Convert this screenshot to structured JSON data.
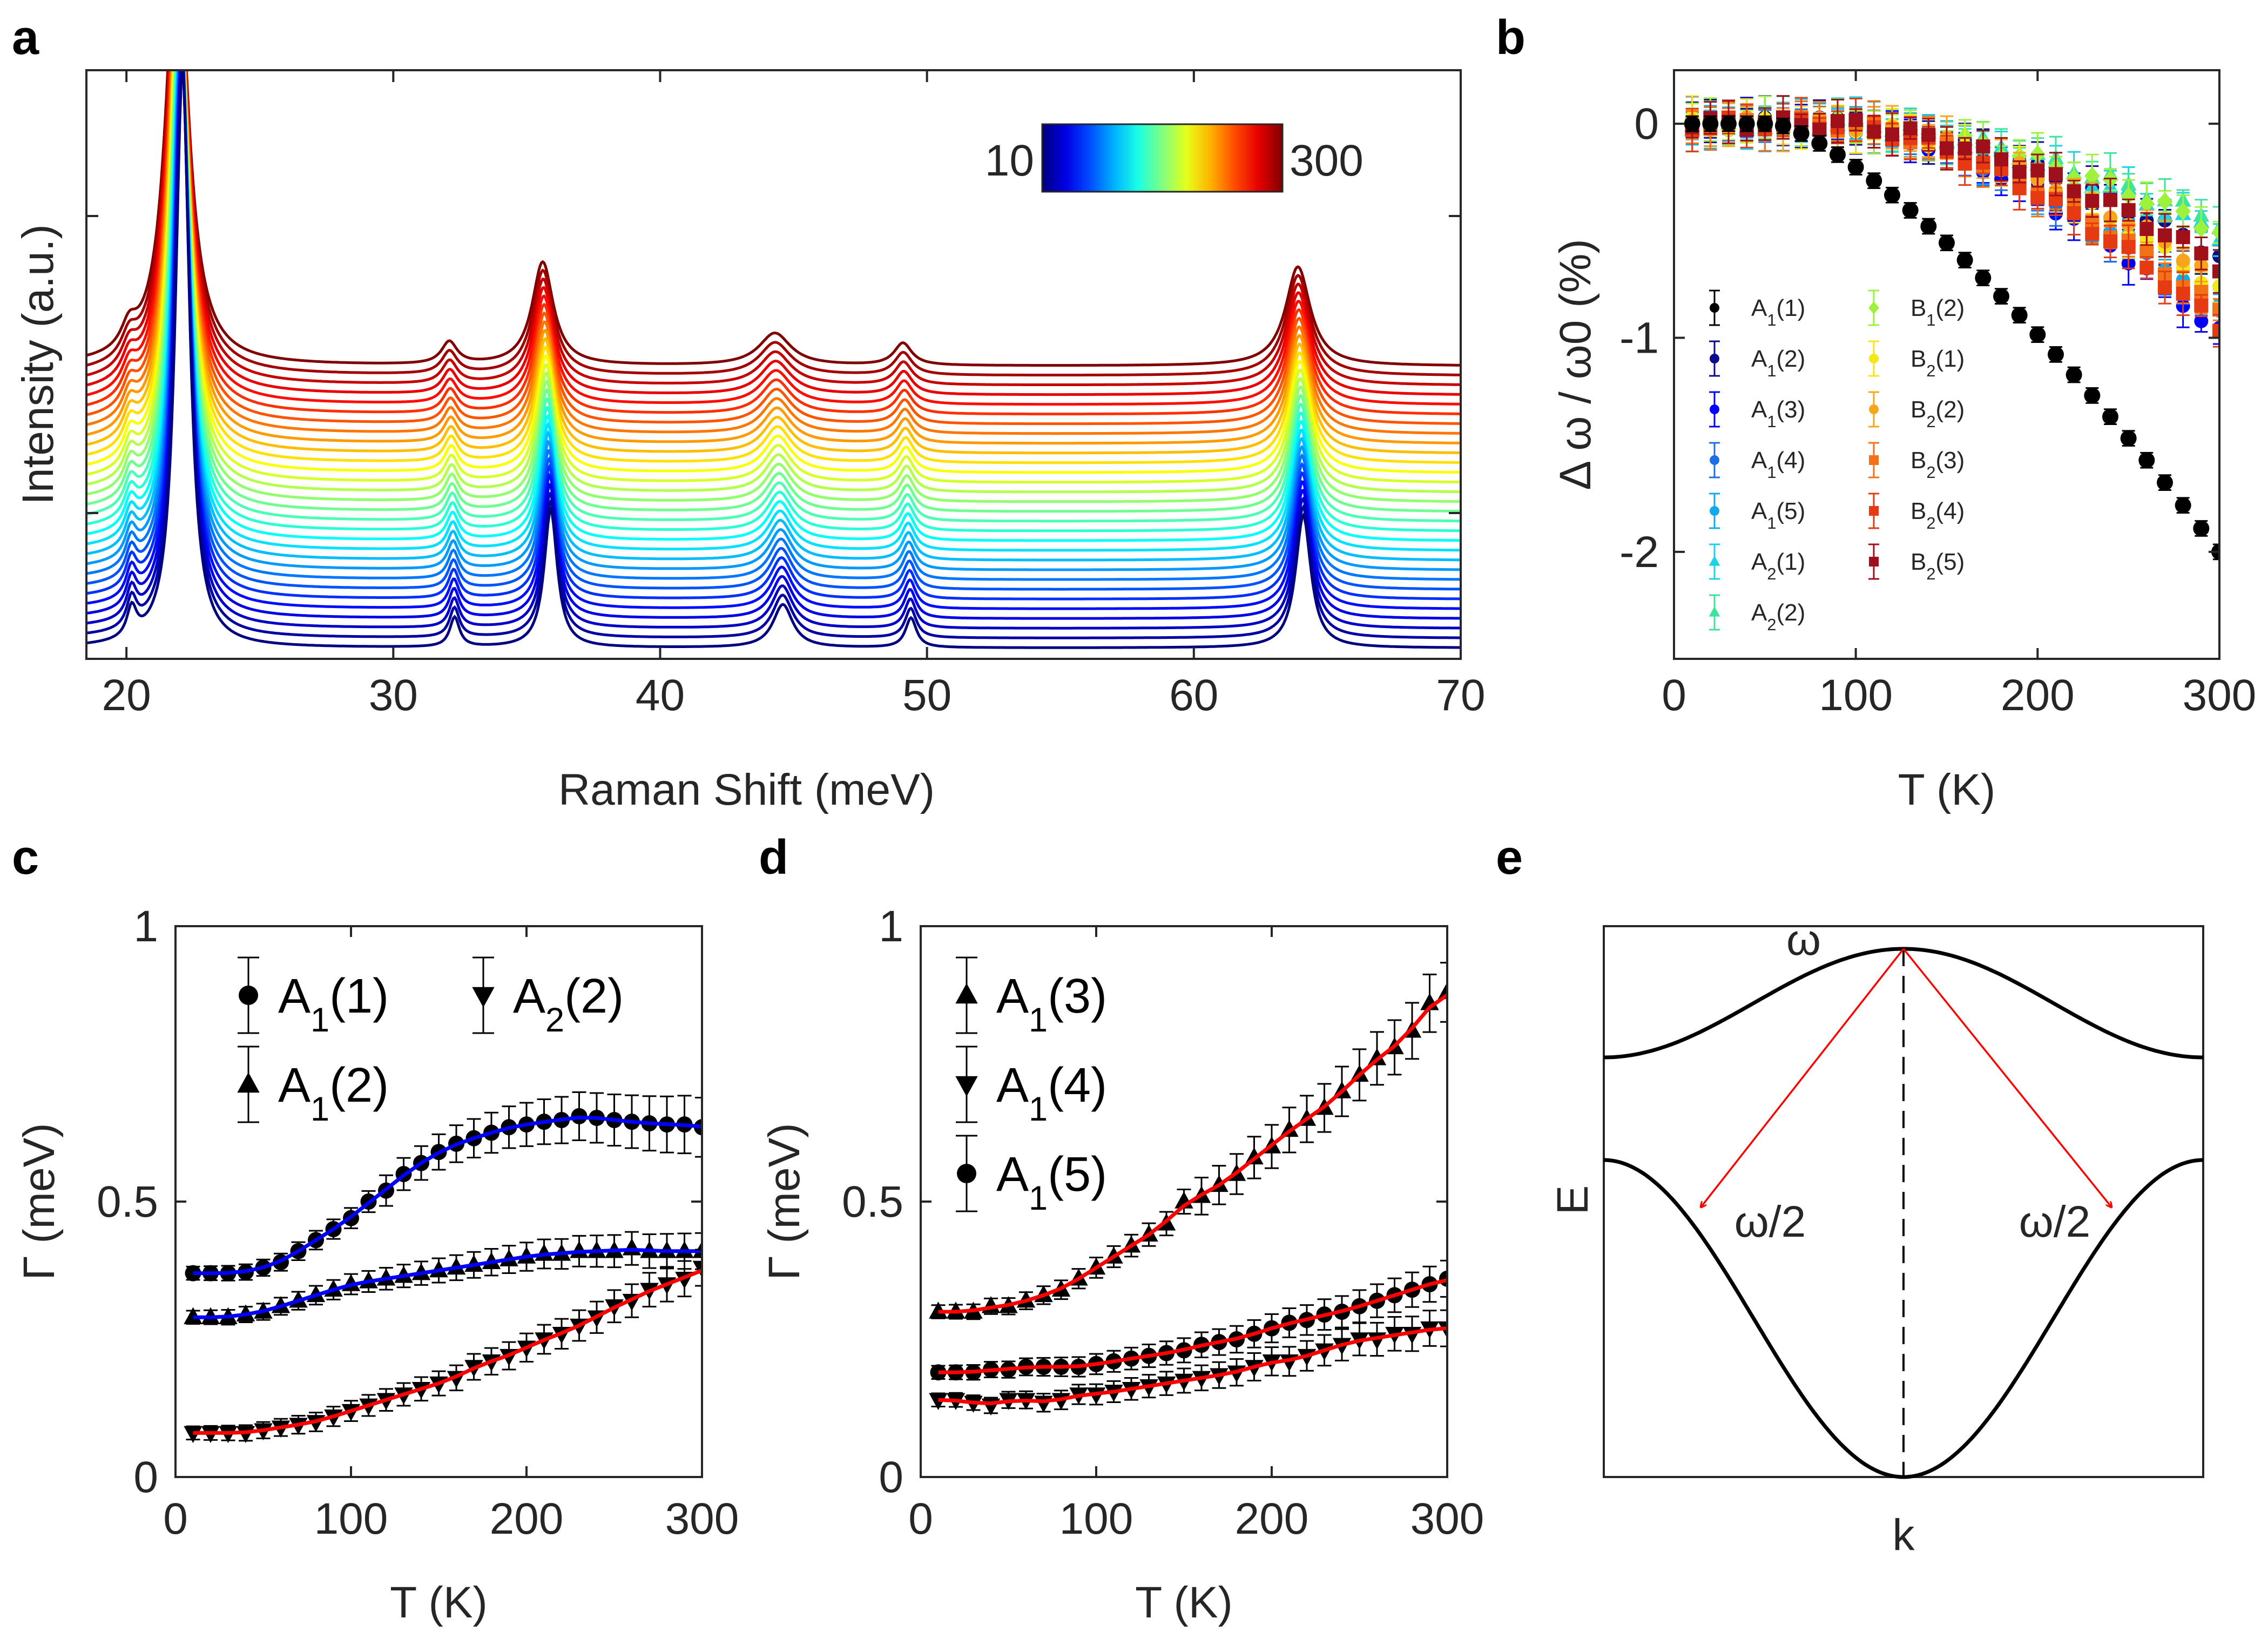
{
  "colorbar": {
    "min_label": "10",
    "max_label": "300"
  },
  "chart_data": [
    {
      "panel": "a",
      "type": "line",
      "title": "",
      "xlabel": "Raman Shift (meV)",
      "ylabel": "Intensity (a.u.)",
      "xlim": [
        18.5,
        70
      ],
      "xticks": [
        20,
        30,
        40,
        50,
        60,
        70
      ],
      "yticks_labeled": false,
      "n_curves": 30,
      "temperatures": [
        10,
        20,
        30,
        40,
        50,
        60,
        70,
        80,
        90,
        100,
        110,
        120,
        130,
        140,
        150,
        160,
        170,
        180,
        190,
        200,
        210,
        220,
        230,
        240,
        250,
        260,
        270,
        280,
        290,
        300
      ],
      "peaks_meV_at_10K": [
        20.2,
        22.1,
        32.3,
        35.9,
        44.6,
        49.4,
        64.1
      ],
      "peaks_meV_at_300K": [
        20.1,
        21.9,
        32.1,
        35.6,
        44.3,
        49.1,
        63.9
      ],
      "colorbar": {
        "min": 10,
        "max": 300,
        "colormap": "jet"
      }
    },
    {
      "panel": "b",
      "type": "scatter",
      "xlabel": "T (K)",
      "ylabel": "Δ ω / ω0 (%)",
      "xlim": [
        0,
        300
      ],
      "ylim": [
        -2.5,
        0.25
      ],
      "xticks": [
        0,
        100,
        200,
        300
      ],
      "yticks": [
        0,
        -1,
        -2
      ],
      "legend": [
        {
          "base": "A",
          "sub": "1",
          "suffix": "(1)",
          "color": "#000000",
          "marker": "circle"
        },
        {
          "base": "A",
          "sub": "1",
          "suffix": "(2)",
          "color": "#0b0b8f",
          "marker": "circle"
        },
        {
          "base": "A",
          "sub": "1",
          "suffix": "(3)",
          "color": "#0000ff",
          "marker": "circle"
        },
        {
          "base": "A",
          "sub": "1",
          "suffix": "(4)",
          "color": "#1e6fe6",
          "marker": "circle"
        },
        {
          "base": "A",
          "sub": "1",
          "suffix": "(5)",
          "color": "#12a9ea",
          "marker": "circle"
        },
        {
          "base": "A",
          "sub": "2",
          "suffix": "(1)",
          "color": "#1ed2e6",
          "marker": "triangle"
        },
        {
          "base": "A",
          "sub": "2",
          "suffix": "(2)",
          "color": "#3ee39c",
          "marker": "triangle"
        },
        {
          "base": "B",
          "sub": "1",
          "suffix": "(2)",
          "color": "#9cf23c",
          "marker": "diamond"
        },
        {
          "base": "B",
          "sub": "2",
          "suffix": "(1)",
          "color": "#f2e818",
          "marker": "circle"
        },
        {
          "base": "B",
          "sub": "2",
          "suffix": "(2)",
          "color": "#f7a51a",
          "marker": "circle"
        },
        {
          "base": "B",
          "sub": "2",
          "suffix": "(3)",
          "color": "#f47217",
          "marker": "square"
        },
        {
          "base": "B",
          "sub": "2",
          "suffix": "(4)",
          "color": "#e63a12",
          "marker": "square"
        },
        {
          "base": "B",
          "sub": "2",
          "suffix": "(5)",
          "color": "#a0101a",
          "marker": "square"
        }
      ],
      "temperatures": [
        10,
        20,
        30,
        40,
        50,
        60,
        70,
        80,
        90,
        100,
        110,
        120,
        130,
        140,
        150,
        160,
        170,
        180,
        190,
        200,
        210,
        220,
        230,
        240,
        250,
        260,
        270,
        280,
        290,
        300
      ],
      "series_end_values": {
        "A1(1)": -2.0,
        "A1(2)": -0.62,
        "A1(3)": -0.98,
        "A1(4)": -0.9,
        "A1(5)": -0.85,
        "A2(1)": -0.52,
        "A2(2)": -0.46,
        "B1(2)": -0.5,
        "B2(1)": -0.78,
        "B2(2)": -0.72,
        "B2(3)": -0.88,
        "B2(4)": -0.95,
        "B2(5)": -0.66
      }
    },
    {
      "panel": "c",
      "type": "scatter",
      "xlabel": "T (K)",
      "ylabel": "Γ (meV)",
      "xlim": [
        0,
        300
      ],
      "ylim": [
        0,
        1
      ],
      "xticks": [
        0,
        100,
        200,
        300
      ],
      "yticks": [
        0,
        0.5,
        1
      ],
      "legend": [
        {
          "base": "A",
          "sub": "1",
          "suffix": "(1)",
          "marker": "circle"
        },
        {
          "base": "A",
          "sub": "2",
          "suffix": "(2)",
          "marker": "triangle-down"
        },
        {
          "base": "A",
          "sub": "1",
          "suffix": "(2)",
          "marker": "triangle-up"
        }
      ],
      "series": [
        {
          "name": "A1(1)",
          "fit_color": "#0000ff",
          "x": [
            10,
            20,
            30,
            40,
            50,
            60,
            70,
            80,
            90,
            100,
            110,
            120,
            130,
            140,
            150,
            160,
            170,
            180,
            190,
            200,
            210,
            220,
            230,
            240,
            250,
            260,
            270,
            280,
            290,
            300
          ],
          "y": [
            0.37,
            0.37,
            0.37,
            0.372,
            0.38,
            0.39,
            0.41,
            0.43,
            0.45,
            0.47,
            0.5,
            0.52,
            0.55,
            0.57,
            0.59,
            0.605,
            0.615,
            0.625,
            0.635,
            0.64,
            0.645,
            0.648,
            0.655,
            0.652,
            0.648,
            0.645,
            0.642,
            0.64,
            0.64,
            0.635
          ]
        },
        {
          "name": "A1(2)",
          "fit_color": "#0000ff",
          "x": [
            10,
            20,
            30,
            40,
            50,
            60,
            70,
            80,
            90,
            100,
            110,
            120,
            130,
            140,
            150,
            160,
            170,
            180,
            190,
            200,
            210,
            220,
            230,
            240,
            250,
            260,
            270,
            280,
            290,
            300
          ],
          "y": [
            0.29,
            0.29,
            0.29,
            0.295,
            0.3,
            0.31,
            0.32,
            0.33,
            0.34,
            0.35,
            0.355,
            0.36,
            0.365,
            0.37,
            0.375,
            0.38,
            0.385,
            0.39,
            0.395,
            0.4,
            0.405,
            0.405,
            0.41,
            0.41,
            0.41,
            0.415,
            0.41,
            0.41,
            0.41,
            0.41
          ]
        },
        {
          "name": "A2(2)",
          "fit_color": "#ff0000",
          "x": [
            10,
            20,
            30,
            40,
            50,
            60,
            70,
            80,
            90,
            100,
            110,
            120,
            130,
            140,
            150,
            160,
            170,
            180,
            190,
            200,
            210,
            220,
            230,
            240,
            250,
            260,
            270,
            280,
            290,
            300
          ],
          "y": [
            0.08,
            0.08,
            0.08,
            0.08,
            0.085,
            0.09,
            0.095,
            0.1,
            0.11,
            0.12,
            0.13,
            0.14,
            0.15,
            0.16,
            0.17,
            0.18,
            0.2,
            0.21,
            0.22,
            0.235,
            0.25,
            0.26,
            0.275,
            0.29,
            0.31,
            0.32,
            0.34,
            0.35,
            0.36,
            0.38
          ]
        }
      ]
    },
    {
      "panel": "d",
      "type": "scatter",
      "xlabel": "T (K)",
      "ylabel": "Γ (meV)",
      "xlim": [
        0,
        300
      ],
      "ylim": [
        0,
        1
      ],
      "xticks": [
        0,
        100,
        200,
        300
      ],
      "yticks": [
        0,
        0.5,
        1
      ],
      "legend": [
        {
          "base": "A",
          "sub": "1",
          "suffix": "(3)",
          "marker": "triangle-up"
        },
        {
          "base": "A",
          "sub": "1",
          "suffix": "(4)",
          "marker": "triangle-down"
        },
        {
          "base": "A",
          "sub": "1",
          "suffix": "(5)",
          "marker": "circle"
        }
      ],
      "series": [
        {
          "name": "A1(3)",
          "fit_color": "#ff0000",
          "x": [
            10,
            20,
            30,
            40,
            50,
            60,
            70,
            80,
            90,
            100,
            110,
            120,
            130,
            140,
            150,
            160,
            170,
            180,
            190,
            200,
            210,
            220,
            230,
            240,
            250,
            260,
            270,
            280,
            290,
            300
          ],
          "y": [
            0.3,
            0.3,
            0.3,
            0.31,
            0.31,
            0.32,
            0.33,
            0.34,
            0.36,
            0.38,
            0.4,
            0.42,
            0.44,
            0.46,
            0.5,
            0.51,
            0.53,
            0.55,
            0.58,
            0.6,
            0.63,
            0.65,
            0.67,
            0.7,
            0.73,
            0.76,
            0.78,
            0.81,
            0.86,
            0.88
          ]
        },
        {
          "name": "A1(5)",
          "fit_color": "#ff0000",
          "x": [
            10,
            20,
            30,
            40,
            50,
            60,
            70,
            80,
            90,
            100,
            110,
            120,
            130,
            140,
            150,
            160,
            170,
            180,
            190,
            200,
            210,
            220,
            230,
            240,
            250,
            260,
            270,
            280,
            290,
            300
          ],
          "y": [
            0.19,
            0.19,
            0.19,
            0.195,
            0.195,
            0.2,
            0.2,
            0.2,
            0.2,
            0.205,
            0.21,
            0.215,
            0.22,
            0.225,
            0.23,
            0.24,
            0.245,
            0.25,
            0.26,
            0.27,
            0.28,
            0.285,
            0.295,
            0.3,
            0.31,
            0.32,
            0.33,
            0.34,
            0.35,
            0.36
          ]
        },
        {
          "name": "A1(4)",
          "fit_color": "#ff0000",
          "x": [
            10,
            20,
            30,
            40,
            50,
            60,
            70,
            80,
            90,
            100,
            110,
            120,
            130,
            140,
            150,
            160,
            170,
            180,
            190,
            200,
            210,
            220,
            230,
            240,
            250,
            260,
            270,
            280,
            290,
            300
          ],
          "y": [
            0.14,
            0.14,
            0.135,
            0.13,
            0.14,
            0.14,
            0.135,
            0.14,
            0.15,
            0.15,
            0.155,
            0.16,
            0.165,
            0.17,
            0.175,
            0.18,
            0.185,
            0.19,
            0.2,
            0.21,
            0.21,
            0.22,
            0.23,
            0.24,
            0.25,
            0.25,
            0.26,
            0.26,
            0.27,
            0.27
          ]
        }
      ]
    },
    {
      "panel": "e",
      "type": "line",
      "xlabel": "k",
      "ylabel": "E",
      "xticks": [],
      "yticks": [],
      "annotations": {
        "top": "ω",
        "left": "ω/2",
        "right": "ω/2"
      }
    }
  ]
}
